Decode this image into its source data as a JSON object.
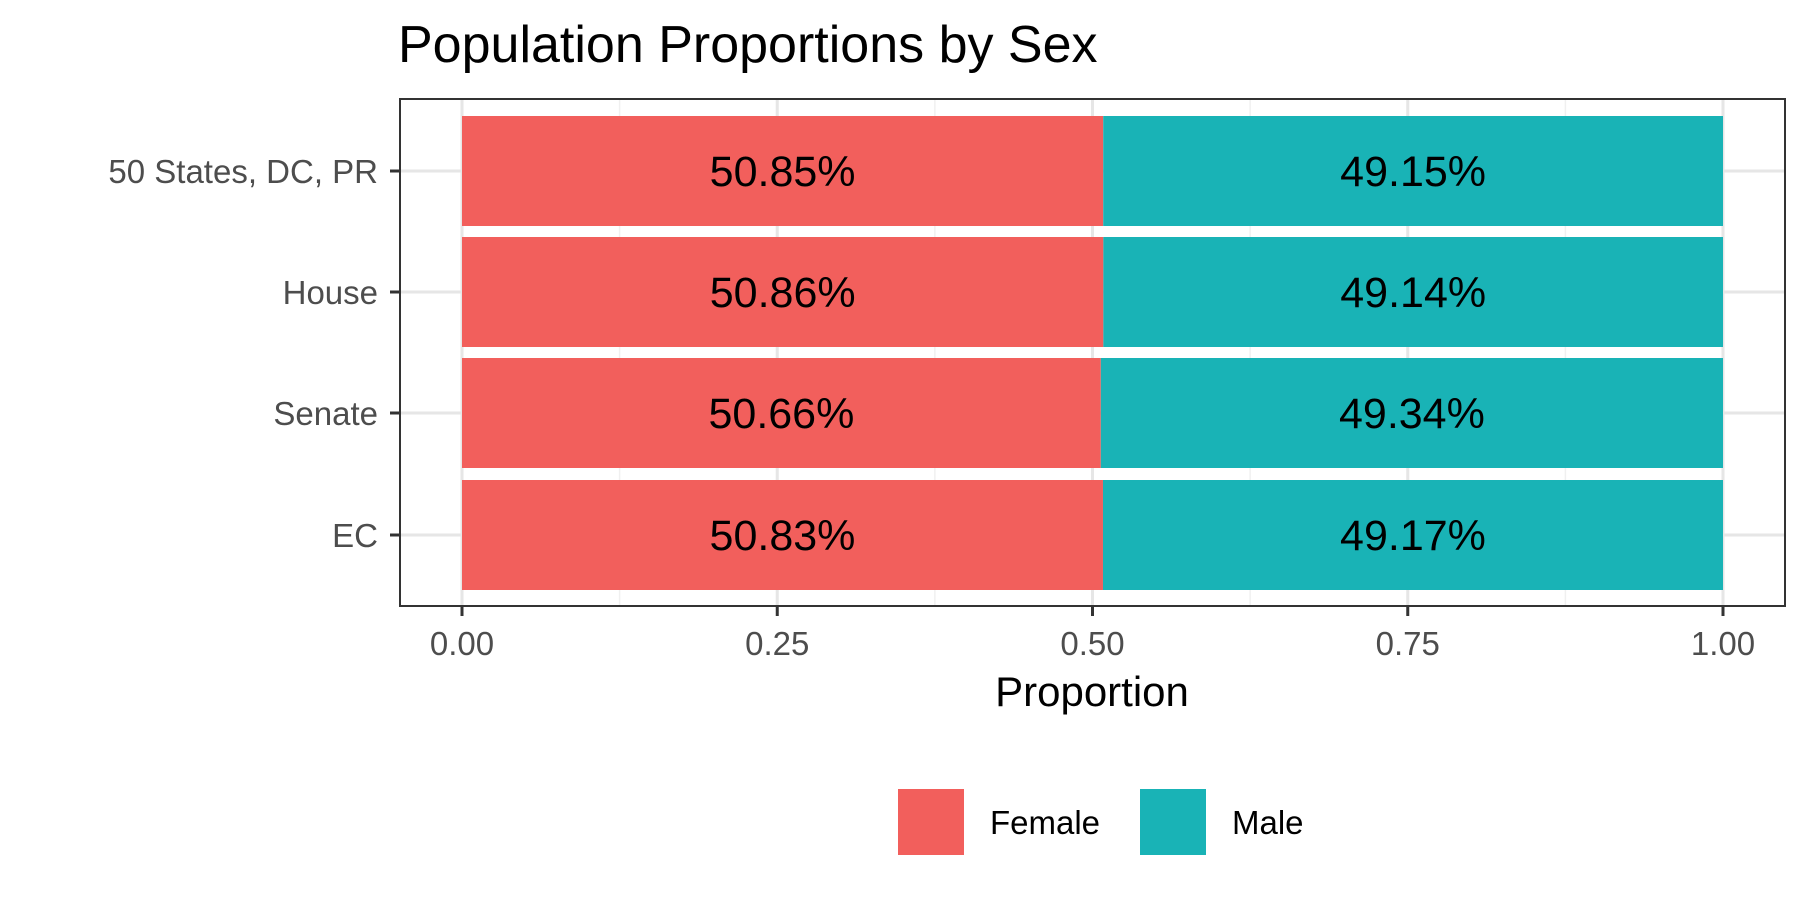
{
  "chart_data": {
    "type": "bar",
    "orientation": "horizontal",
    "stacked": true,
    "title": "Population Proportions by Sex",
    "xlabel": "Proportion",
    "ylabel": "",
    "xlim": [
      0,
      1
    ],
    "x_ticks": [
      0,
      0.25,
      0.5,
      0.75,
      1
    ],
    "x_tick_labels": [
      "0.00",
      "0.25",
      "0.50",
      "0.75",
      "1.00"
    ],
    "categories": [
      "50 States, DC, PR",
      "House",
      "Senate",
      "EC"
    ],
    "series": [
      {
        "name": "Female",
        "color": "#F25F5C",
        "values": [
          0.5085,
          0.5086,
          0.5066,
          0.5083
        ],
        "labels": [
          "50.85%",
          "50.86%",
          "50.66%",
          "50.83%"
        ]
      },
      {
        "name": "Male",
        "color": "#19B3B6",
        "values": [
          0.4915,
          0.4914,
          0.4934,
          0.4917
        ],
        "labels": [
          "49.15%",
          "49.14%",
          "49.34%",
          "49.17%"
        ]
      }
    ],
    "grid": true,
    "legend_position": "bottom"
  }
}
